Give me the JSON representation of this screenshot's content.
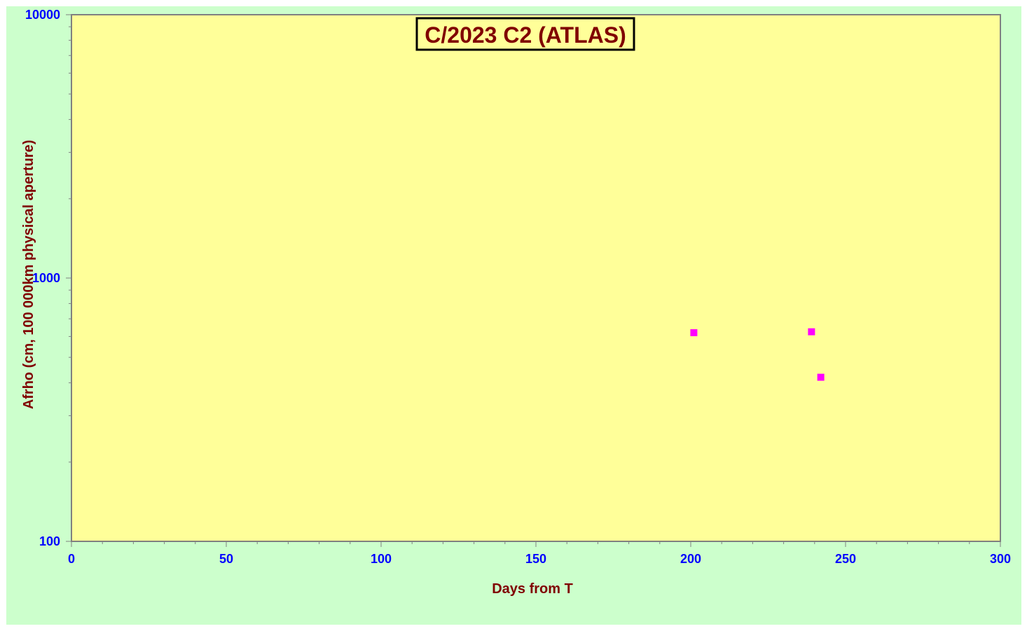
{
  "chart_data": {
    "type": "scatter",
    "title": "C/2023 C2 (ATLAS)",
    "xlabel": "Days from  T",
    "ylabel": "Afrho (cm, 100 000km physical  aperture)",
    "xlim": [
      0,
      300
    ],
    "ylim": [
      100,
      10000
    ],
    "yscale": "log",
    "x_ticks": [
      "0",
      "50",
      "100",
      "150",
      "200",
      "250",
      "300"
    ],
    "y_ticks": [
      "100",
      "1000",
      "10000"
    ],
    "grid": false,
    "series": [
      {
        "marker": "square",
        "color": "#ff00ff",
        "points": [
          {
            "x": 201,
            "y": 620
          },
          {
            "x": 239,
            "y": 625
          },
          {
            "x": 242,
            "y": 420
          }
        ]
      }
    ]
  },
  "colors": {
    "outer_background": "#ccffcc",
    "plot_background": "#ffff99",
    "title_color": "#800000",
    "axis_title_color": "#800000",
    "tick_label_color": "#0000ff",
    "marker_color": "#ff00ff"
  }
}
